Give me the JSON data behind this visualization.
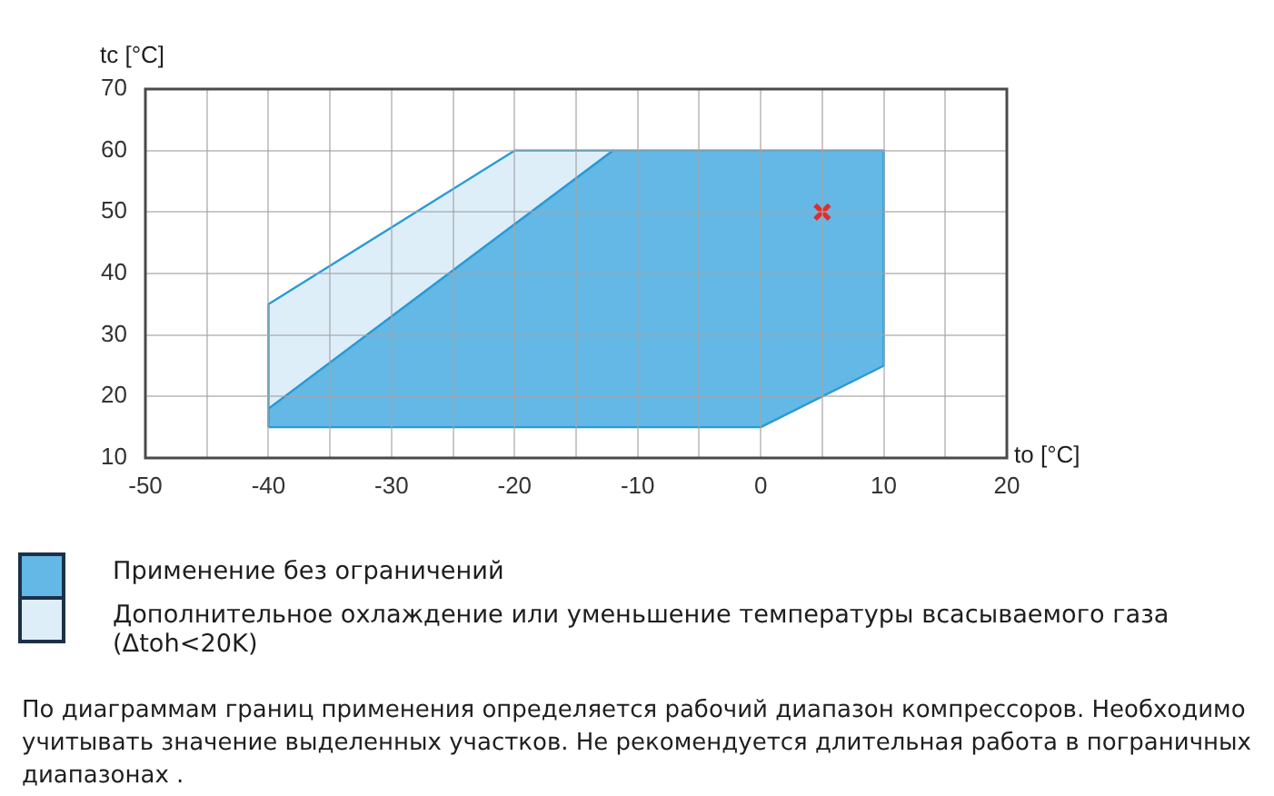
{
  "chart_data": {
    "type": "area",
    "xlabel": "to [°C]",
    "ylabel": "tc [°C]",
    "series": [
      {
        "name": "Применение без ограничений",
        "color": "#63b8e6",
        "x": [
          -40,
          -40,
          -12,
          10,
          10,
          0
        ],
        "values": [
          15,
          18,
          60,
          60,
          25,
          15
        ]
      },
      {
        "name": "Дополнительное охлаждение или уменьшение температуры всасываемого газа (Δtoh<20K)",
        "color": "#ddeef9",
        "x": [
          -40,
          -40,
          -20,
          -12
        ],
        "values": [
          18,
          35,
          60,
          60
        ]
      },
      {
        "type": "scatter",
        "color": "#e32b2b",
        "x": [
          5
        ],
        "values": [
          50
        ],
        "marker": "cross"
      }
    ],
    "xlim": [
      -50,
      20
    ],
    "xticks": [
      -50,
      {
        "value": -45,
        "label": null
      },
      -40,
      {
        "value": -35,
        "label": null
      },
      -30,
      {
        "value": -25,
        "label": null
      },
      -20,
      {
        "value": -15,
        "label": null
      },
      -10,
      {
        "value": -5,
        "label": null
      },
      0,
      {
        "value": 5,
        "label": null
      },
      10,
      {
        "value": 15,
        "label": null
      },
      20
    ],
    "ylim": [
      10,
      70
    ],
    "yticks": [
      10,
      20,
      30,
      40,
      50,
      60,
      70
    ],
    "grid": true,
    "legend": "bottom left",
    "annotations": [
      "По диаграммам границ применения определяется рабочий диапазон компрессоров. Необходимо учитывать значение выделенных участков. Не рекомендуется длительная работа в пограничных диапазонах ."
    ]
  }
}
